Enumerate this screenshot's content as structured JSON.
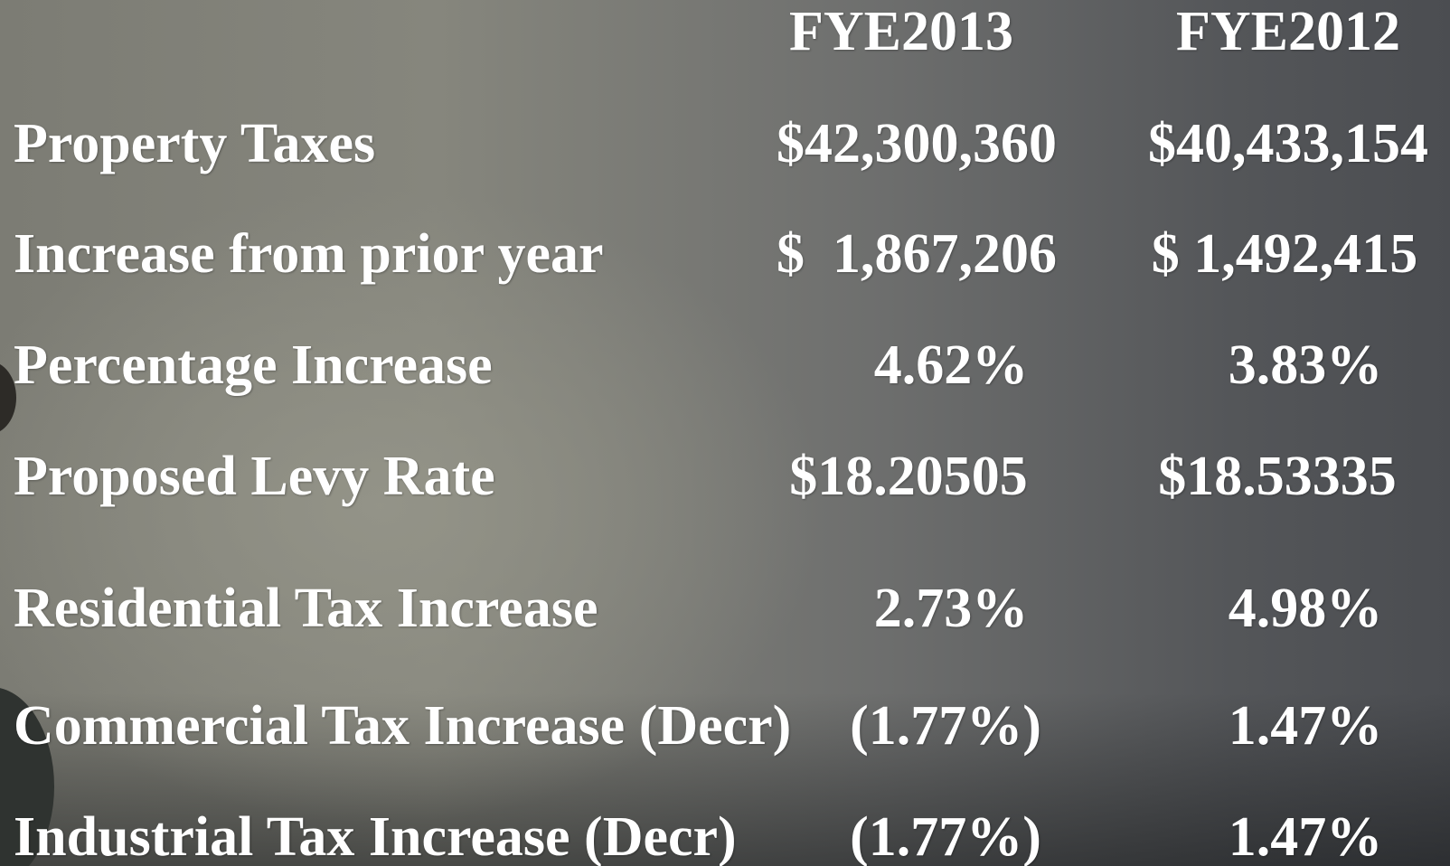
{
  "table": {
    "columns": [
      "FYE2013",
      "FYE2012"
    ],
    "rows": [
      [
        "Property Taxes",
        "$42,300,360",
        "$40,433,154"
      ],
      [
        "Increase from prior year",
        "$  1,867,206",
        "$ 1,492,415"
      ],
      [
        "Percentage Increase",
        "4.62%",
        "3.83%"
      ],
      [
        "Proposed Levy Rate",
        "$18.20505",
        "$18.53335"
      ],
      [
        "Residential Tax Increase",
        "2.73%",
        "4.98%"
      ],
      [
        "Commercial Tax Increase (Decr)",
        "(1.77%)",
        "1.47%"
      ],
      [
        "Industrial Tax Increase (Decr)",
        "(1.77%)",
        "1.47%"
      ]
    ]
  }
}
